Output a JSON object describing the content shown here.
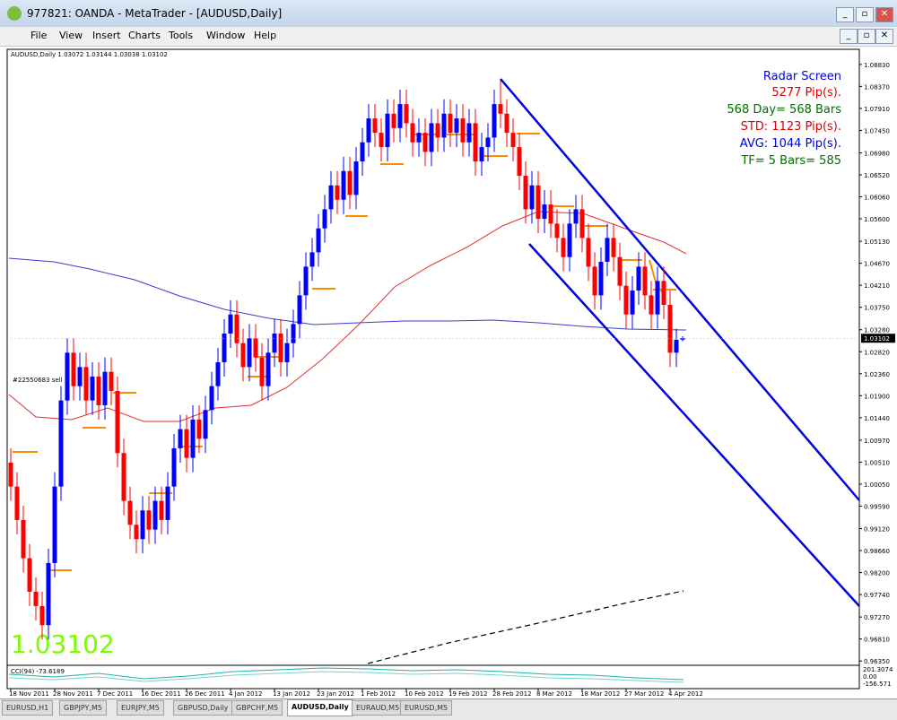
{
  "window": {
    "title": "977821: OANDA - MetaTrader - [AUDUSD,Daily]"
  },
  "menu": [
    "File",
    "View",
    "Insert",
    "Charts",
    "Tools",
    "Window",
    "Help"
  ],
  "chart_data": {
    "type": "candlestick",
    "header": "AUDUSD,Daily  1.03072 1.03144 1.03038 1.03102",
    "up_color": "#0000ff",
    "down_color": "#ff0000",
    "categories": [
      "18 Nov 2011",
      null,
      null,
      null,
      null,
      null,
      null,
      "28 Nov 2011",
      null,
      null,
      null,
      null,
      null,
      null,
      "7 Dec 2011",
      null,
      null,
      null,
      null,
      null,
      null,
      "16 Dec 2011",
      null,
      null,
      null,
      null,
      null,
      null,
      "26 Dec 2011",
      null,
      null,
      null,
      null,
      null,
      null,
      "4 Jan 2012",
      null,
      null,
      null,
      null,
      null,
      null,
      "13 Jan 2012",
      null,
      null,
      null,
      null,
      null,
      null,
      "23 Jan 2012",
      null,
      null,
      null,
      null,
      null,
      null,
      "1 Feb 2012",
      null,
      null,
      null,
      null,
      null,
      null,
      "10 Feb 2012",
      null,
      null,
      null,
      null,
      null,
      null,
      "19 Feb 2012",
      null,
      null,
      null,
      null,
      null,
      null,
      "28 Feb 2012",
      null,
      null,
      null,
      null,
      null,
      null,
      "8 Mar 2012",
      null,
      null,
      null,
      null,
      null,
      null,
      "18 Mar 2012",
      null,
      null,
      null,
      null,
      null,
      null,
      "27 Mar 2012",
      null,
      null,
      null,
      null,
      null,
      null,
      "4 Apr 2012",
      null,
      null
    ],
    "ohlc": [
      [
        1.005,
        1.008,
        0.997,
        1.0
      ],
      [
        1.0,
        1.003,
        0.99,
        0.993
      ],
      [
        0.993,
        0.996,
        0.982,
        0.985
      ],
      [
        0.985,
        0.988,
        0.975,
        0.978
      ],
      [
        0.978,
        0.981,
        0.972,
        0.975
      ],
      [
        0.975,
        0.978,
        0.968,
        0.971
      ],
      [
        0.971,
        0.987,
        0.968,
        0.984
      ],
      [
        0.984,
        1.003,
        0.981,
        1.0
      ],
      [
        1.0,
        1.021,
        0.997,
        1.018
      ],
      [
        1.018,
        1.031,
        1.015,
        1.028
      ],
      [
        1.028,
        1.031,
        1.018,
        1.021
      ],
      [
        1.021,
        1.028,
        1.018,
        1.025
      ],
      [
        1.025,
        1.028,
        1.015,
        1.018
      ],
      [
        1.018,
        1.026,
        1.015,
        1.023
      ],
      [
        1.023,
        1.026,
        1.014,
        1.017
      ],
      [
        1.017,
        1.027,
        1.014,
        1.024
      ],
      [
        1.024,
        1.027,
        1.017,
        1.02
      ],
      [
        1.02,
        1.023,
        1.004,
        1.007
      ],
      [
        1.007,
        1.01,
        0.994,
        0.997
      ],
      [
        0.997,
        1.0,
        0.989,
        0.992
      ],
      [
        0.992,
        0.995,
        0.986,
        0.989
      ],
      [
        0.989,
        0.998,
        0.986,
        0.995
      ],
      [
        0.995,
        0.998,
        0.988,
        0.991
      ],
      [
        0.991,
        1.0,
        0.988,
        0.997
      ],
      [
        0.997,
        1.0,
        0.99,
        0.993
      ],
      [
        0.993,
        1.003,
        0.99,
        1.0
      ],
      [
        1.0,
        1.011,
        0.997,
        1.008
      ],
      [
        1.008,
        1.015,
        1.005,
        1.012
      ],
      [
        1.012,
        1.015,
        1.003,
        1.006
      ],
      [
        1.006,
        1.017,
        1.003,
        1.014
      ],
      [
        1.014,
        1.017,
        1.007,
        1.01
      ],
      [
        1.01,
        1.019,
        1.007,
        1.016
      ],
      [
        1.016,
        1.024,
        1.013,
        1.021
      ],
      [
        1.021,
        1.029,
        1.018,
        1.026
      ],
      [
        1.026,
        1.035,
        1.023,
        1.032
      ],
      [
        1.032,
        1.039,
        1.029,
        1.036
      ],
      [
        1.036,
        1.039,
        1.027,
        1.03
      ],
      [
        1.03,
        1.033,
        1.022,
        1.025
      ],
      [
        1.025,
        1.034,
        1.022,
        1.031
      ],
      [
        1.031,
        1.034,
        1.024,
        1.027
      ],
      [
        1.027,
        1.03,
        1.018,
        1.021
      ],
      [
        1.021,
        1.031,
        1.018,
        1.028
      ],
      [
        1.028,
        1.035,
        1.025,
        1.032
      ],
      [
        1.032,
        1.035,
        1.023,
        1.026
      ],
      [
        1.026,
        1.033,
        1.023,
        1.03
      ],
      [
        1.03,
        1.037,
        1.027,
        1.034
      ],
      [
        1.034,
        1.043,
        1.031,
        1.04
      ],
      [
        1.04,
        1.049,
        1.037,
        1.046
      ],
      [
        1.046,
        1.052,
        1.043,
        1.049
      ],
      [
        1.049,
        1.057,
        1.046,
        1.054
      ],
      [
        1.054,
        1.061,
        1.051,
        1.058
      ],
      [
        1.058,
        1.066,
        1.055,
        1.063
      ],
      [
        1.063,
        1.066,
        1.057,
        1.06
      ],
      [
        1.06,
        1.069,
        1.057,
        1.066
      ],
      [
        1.066,
        1.069,
        1.058,
        1.061
      ],
      [
        1.061,
        1.071,
        1.058,
        1.068
      ],
      [
        1.068,
        1.075,
        1.065,
        1.072
      ],
      [
        1.072,
        1.08,
        1.069,
        1.077
      ],
      [
        1.077,
        1.08,
        1.071,
        1.074
      ],
      [
        1.074,
        1.077,
        1.068,
        1.071
      ],
      [
        1.071,
        1.081,
        1.068,
        1.078
      ],
      [
        1.078,
        1.081,
        1.072,
        1.075
      ],
      [
        1.075,
        1.083,
        1.072,
        1.08
      ],
      [
        1.08,
        1.083,
        1.073,
        1.076
      ],
      [
        1.076,
        1.079,
        1.069,
        1.072
      ],
      [
        1.072,
        1.077,
        1.069,
        1.074
      ],
      [
        1.074,
        1.077,
        1.067,
        1.07
      ],
      [
        1.07,
        1.079,
        1.067,
        1.076
      ],
      [
        1.076,
        1.079,
        1.07,
        1.073
      ],
      [
        1.073,
        1.081,
        1.07,
        1.078
      ],
      [
        1.078,
        1.081,
        1.071,
        1.074
      ],
      [
        1.074,
        1.08,
        1.071,
        1.077
      ],
      [
        1.077,
        1.08,
        1.069,
        1.072
      ],
      [
        1.072,
        1.079,
        1.069,
        1.076
      ],
      [
        1.076,
        1.079,
        1.065,
        1.068
      ],
      [
        1.068,
        1.074,
        1.065,
        1.071
      ],
      [
        1.071,
        1.076,
        1.068,
        1.073
      ],
      [
        1.073,
        1.083,
        1.07,
        1.08
      ],
      [
        1.08,
        1.085,
        1.075,
        1.078
      ],
      [
        1.078,
        1.081,
        1.071,
        1.074
      ],
      [
        1.074,
        1.077,
        1.068,
        1.071
      ],
      [
        1.071,
        1.074,
        1.062,
        1.065
      ],
      [
        1.065,
        1.068,
        1.055,
        1.058
      ],
      [
        1.058,
        1.066,
        1.055,
        1.063
      ],
      [
        1.063,
        1.066,
        1.053,
        1.056
      ],
      [
        1.056,
        1.062,
        1.053,
        1.059
      ],
      [
        1.059,
        1.062,
        1.052,
        1.055
      ],
      [
        1.055,
        1.058,
        1.049,
        1.052
      ],
      [
        1.052,
        1.055,
        1.045,
        1.048
      ],
      [
        1.048,
        1.058,
        1.045,
        1.055
      ],
      [
        1.055,
        1.061,
        1.052,
        1.058
      ],
      [
        1.058,
        1.061,
        1.049,
        1.052
      ],
      [
        1.052,
        1.055,
        1.043,
        1.046
      ],
      [
        1.046,
        1.049,
        1.037,
        1.04
      ],
      [
        1.04,
        1.05,
        1.037,
        1.047
      ],
      [
        1.047,
        1.055,
        1.044,
        1.052
      ],
      [
        1.052,
        1.055,
        1.045,
        1.048
      ],
      [
        1.048,
        1.051,
        1.039,
        1.042
      ],
      [
        1.042,
        1.045,
        1.033,
        1.036
      ],
      [
        1.036,
        1.044,
        1.033,
        1.041
      ],
      [
        1.041,
        1.049,
        1.038,
        1.046
      ],
      [
        1.046,
        1.049,
        1.037,
        1.04
      ],
      [
        1.04,
        1.043,
        1.033,
        1.036
      ],
      [
        1.036,
        1.046,
        1.033,
        1.043
      ],
      [
        1.043,
        1.046,
        1.035,
        1.038
      ],
      [
        1.038,
        1.041,
        1.025,
        1.028
      ],
      [
        1.028,
        1.033,
        1.025,
        1.0307
      ],
      [
        1.03072,
        1.03144,
        1.03038,
        1.03102
      ]
    ],
    "ylim": [
      0.9626,
      1.0909
    ],
    "yticks": [
      {
        "value": 1.0883,
        "label": "1.08830"
      },
      {
        "value": 1.0837,
        "label": "1.08370"
      },
      {
        "value": 1.0791,
        "label": "1.07910"
      },
      {
        "value": 1.0745,
        "label": "1.07450"
      },
      {
        "value": 1.0698,
        "label": "1.06980"
      },
      {
        "value": 1.0652,
        "label": "1.06520"
      },
      {
        "value": 1.0606,
        "label": "1.06060"
      },
      {
        "value": 1.056,
        "label": "1.05600"
      },
      {
        "value": 1.0513,
        "label": "1.05130"
      },
      {
        "value": 1.0467,
        "label": "1.04670"
      },
      {
        "value": 1.0421,
        "label": "1.04210"
      },
      {
        "value": 1.0375,
        "label": "1.03750"
      },
      {
        "value": 1.0328,
        "label": "1.03280"
      },
      {
        "value": 1.0282,
        "label": "1.02820"
      },
      {
        "value": 1.0236,
        "label": "1.02360"
      },
      {
        "value": 1.019,
        "label": "1.01900"
      },
      {
        "value": 1.0144,
        "label": "1.01440"
      },
      {
        "value": 1.0097,
        "label": "1.00970"
      },
      {
        "value": 1.0051,
        "label": "1.00510"
      },
      {
        "value": 1.0005,
        "label": "1.00050"
      },
      {
        "value": 0.9959,
        "label": "0.99590"
      },
      {
        "value": 0.9912,
        "label": "0.99120"
      },
      {
        "value": 0.9866,
        "label": "0.98660"
      },
      {
        "value": 0.982,
        "label": "0.98200"
      },
      {
        "value": 0.9774,
        "label": "0.97740"
      },
      {
        "value": 0.9727,
        "label": "0.97270"
      },
      {
        "value": 0.9681,
        "label": "0.96810"
      },
      {
        "value": 0.9635,
        "label": "0.96350"
      }
    ],
    "current_price": {
      "value": 1.03102,
      "label": "1.03102"
    }
  },
  "overlay": {
    "radar": [
      "Radar Screen",
      "5277 Pip(s).",
      "568 Day= 568 Bars",
      "STD: 1123 Pip(s).",
      "AVG: 1044 Pip(s).",
      "TF= 5 Bars= 585"
    ],
    "order_label": "#22550683 sell",
    "big_price": "1.03102"
  },
  "cci": {
    "label": "CCI(94) -73.6189",
    "ticks": [
      "201.3074",
      "0.00",
      "-156.571"
    ]
  },
  "tabs": [
    "EURUSD,H1",
    "GBPJPY,M5",
    "EURJPY,M5",
    "GBPUSD,Daily",
    "GBPCHF,M5",
    "AUDUSD,Daily",
    "EURAUD,M5",
    "EURUSD,M5"
  ]
}
